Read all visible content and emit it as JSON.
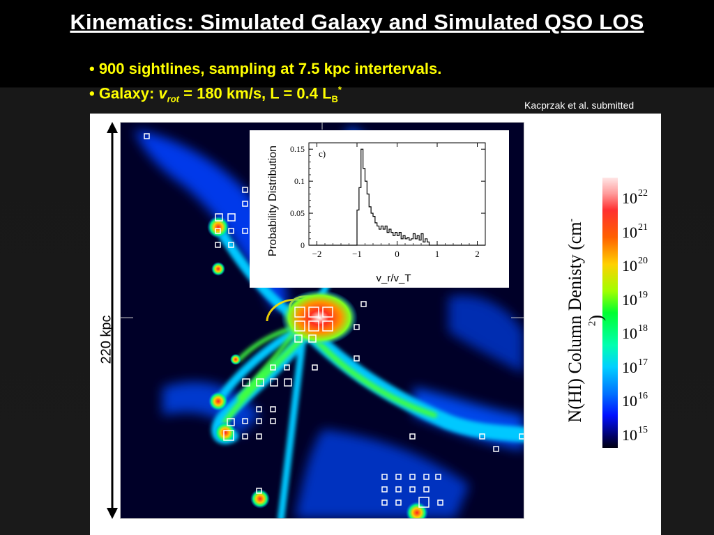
{
  "slide": {
    "title": "Kinematics: Simulated Galaxy and Simulated QSO LOS",
    "bullet1": "• 900 sightlines, sampling at 7.5 kpc intertervals.",
    "bullet2_prefix": "• Galaxy: ",
    "bullet2_v": "v",
    "bullet2_vsub": "rot",
    "bullet2_mid": " = 180 km/s, L = 0.4 L",
    "bullet2_lsub": "B",
    "bullet2_lsup": "*",
    "citation": "Kacprzak et al. submitted"
  },
  "figure": {
    "scale_label": "220 kpc",
    "colorbar_title": "N(HI) Column Denisty (cm",
    "colorbar_title_sup": "-2",
    "colorbar_title_end": ")",
    "colorbar_ticks": [
      {
        "base": "10",
        "exp": "22"
      },
      {
        "base": "10",
        "exp": "21"
      },
      {
        "base": "10",
        "exp": "20"
      },
      {
        "base": "10",
        "exp": "19"
      },
      {
        "base": "10",
        "exp": "18"
      },
      {
        "base": "10",
        "exp": "17"
      },
      {
        "base": "10",
        "exp": "16"
      },
      {
        "base": "10",
        "exp": "15"
      }
    ]
  },
  "chart_data": {
    "type": "line",
    "panel_label": "c)",
    "ylabel": "Probability Distribution",
    "xlabel": "v_r/v_T",
    "xlim": [
      -2.2,
      2.2
    ],
    "ylim": [
      0,
      0.16
    ],
    "xticks": [
      "-2",
      "-1",
      "0",
      "1",
      "2"
    ],
    "yticks": [
      "0",
      "0.05",
      "0.1",
      "0.15"
    ],
    "series": [
      {
        "x": [
          -2.2,
          -1.0,
          -1.0,
          -0.95,
          -0.95,
          -0.9,
          -0.9,
          -0.85,
          -0.85,
          -0.8,
          -0.8,
          -0.75,
          -0.75,
          -0.7,
          -0.7,
          -0.65,
          -0.65,
          -0.6,
          -0.6,
          -0.55,
          -0.55,
          -0.5,
          -0.5,
          -0.45,
          -0.45,
          -0.4,
          -0.4,
          -0.35,
          -0.35,
          -0.3,
          -0.3,
          -0.25,
          -0.25,
          -0.2,
          -0.2,
          -0.15,
          -0.15,
          -0.1,
          -0.1,
          -0.05,
          -0.05,
          0.0,
          0.0,
          0.05,
          0.05,
          0.1,
          0.1,
          0.15,
          0.15,
          0.2,
          0.2,
          0.25,
          0.25,
          0.3,
          0.3,
          0.35,
          0.35,
          0.4,
          0.4,
          0.45,
          0.45,
          0.5,
          0.5,
          0.55,
          0.55,
          0.6,
          0.6,
          0.65,
          0.65,
          0.7,
          0.7,
          0.75,
          0.75,
          0.8,
          0.8,
          2.2
        ],
        "y": [
          0,
          0,
          0.055,
          0.055,
          0.09,
          0.09,
          0.15,
          0.15,
          0.12,
          0.12,
          0.1,
          0.1,
          0.08,
          0.08,
          0.06,
          0.06,
          0.05,
          0.05,
          0.045,
          0.045,
          0.035,
          0.035,
          0.03,
          0.03,
          0.025,
          0.025,
          0.03,
          0.03,
          0.025,
          0.025,
          0.03,
          0.03,
          0.02,
          0.02,
          0.025,
          0.025,
          0.02,
          0.02,
          0.015,
          0.015,
          0.02,
          0.02,
          0.015,
          0.015,
          0.02,
          0.02,
          0.01,
          0.01,
          0.015,
          0.015,
          0.01,
          0.01,
          0.012,
          0.012,
          0.008,
          0.008,
          0.01,
          0.01,
          0.018,
          0.018,
          0.01,
          0.01,
          0.015,
          0.015,
          0.008,
          0.008,
          0.018,
          0.018,
          0.005,
          0.005,
          0.01,
          0.01,
          0.005,
          0.005,
          0,
          0
        ]
      }
    ]
  }
}
